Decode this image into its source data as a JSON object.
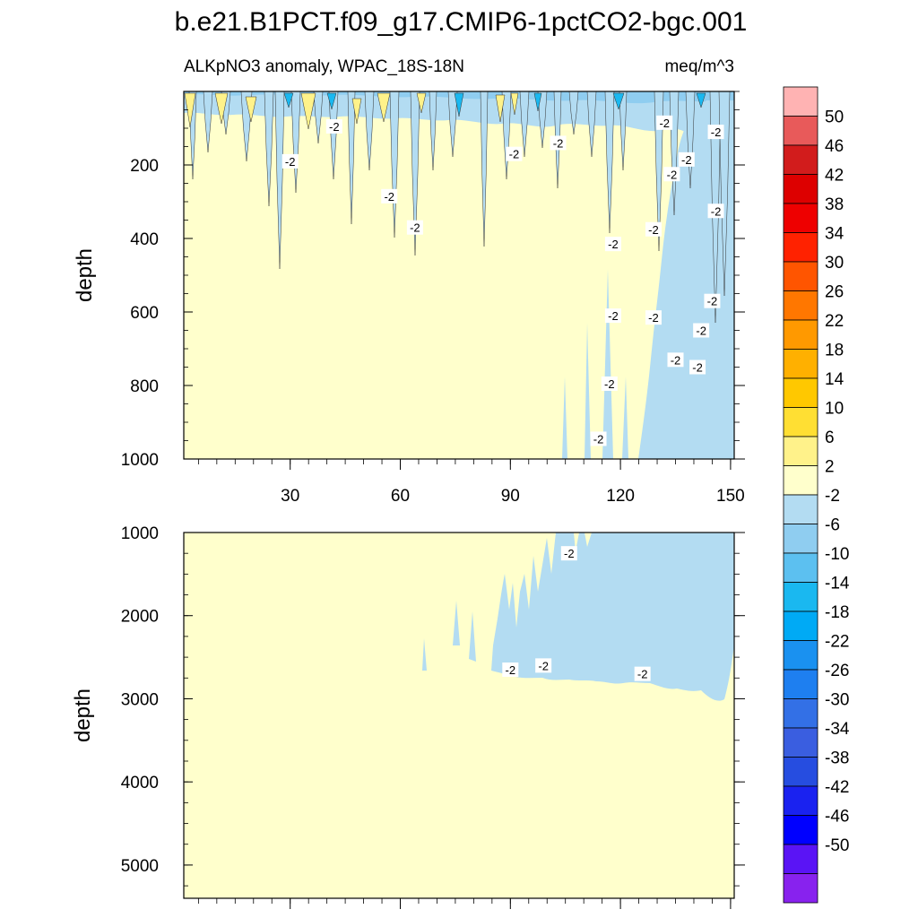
{
  "chart_data": {
    "type": "contour",
    "title": "b.e21.B1PCT.f09_g17.CMIP6-1pctCO2-bgc.001",
    "subtitle_left": "ALKpNO3 anomaly, WPAC_18S-18N",
    "subtitle_right": "meq/m^3",
    "x_ticks": [
      "30",
      "60",
      "90",
      "120",
      "150"
    ],
    "x_tick_values": [
      30,
      60,
      90,
      120,
      150
    ],
    "xlim": [
      1,
      151
    ],
    "contour_label": "-2",
    "panels": [
      {
        "name": "upper",
        "ylabel": "depth",
        "ylim": [
          0,
          1000
        ],
        "y_ticks": [
          "200",
          "400",
          "600",
          "800",
          "1000"
        ],
        "y_tick_values": [
          200,
          400,
          600,
          800,
          1000
        ],
        "labels_at": [
          [
            30,
            190
          ],
          [
            42,
            95
          ],
          [
            57,
            285
          ],
          [
            64,
            370
          ],
          [
            91,
            170
          ],
          [
            103,
            140
          ],
          [
            118,
            415
          ],
          [
            118,
            610
          ],
          [
            117,
            795
          ],
          [
            114,
            945
          ],
          [
            129,
            375
          ],
          [
            129,
            615
          ],
          [
            132,
            85
          ],
          [
            134,
            225
          ],
          [
            135,
            730
          ],
          [
            138,
            185
          ],
          [
            141,
            750
          ],
          [
            142,
            650
          ],
          [
            146,
            110
          ],
          [
            146,
            325
          ],
          [
            145,
            570
          ]
        ]
      },
      {
        "name": "lower",
        "ylabel": "depth",
        "ylim": [
          1000,
          5400
        ],
        "y_ticks": [
          "1000",
          "2000",
          "3000",
          "4000",
          "5000"
        ],
        "y_tick_values": [
          1000,
          2000,
          3000,
          4000,
          5000
        ],
        "labels_at": [
          [
            106,
            1250
          ],
          [
            99,
            2600
          ],
          [
            90,
            2650
          ],
          [
            126,
            2700
          ]
        ]
      }
    ],
    "colorbar": {
      "levels": [
        "50",
        "46",
        "42",
        "38",
        "34",
        "30",
        "26",
        "22",
        "18",
        "14",
        "10",
        "6",
        "2",
        "-2",
        "-6",
        "-10",
        "-14",
        "-18",
        "-22",
        "-26",
        "-30",
        "-34",
        "-38",
        "-42",
        "-46",
        "-50"
      ],
      "colors": [
        "#ffb3b3",
        "#e85a5a",
        "#d21c1c",
        "#dd0000",
        "#ee0000",
        "#ff2200",
        "#ff5500",
        "#ff7700",
        "#ff9900",
        "#ffb000",
        "#ffc800",
        "#ffdf33",
        "#fff28a",
        "#ffffcc",
        "#b3dcf2",
        "#8fcdf0",
        "#5cc0f0",
        "#1ab8f0",
        "#00aaf5",
        "#1a91f0",
        "#1e7ff0",
        "#3370e6",
        "#3a5ee0",
        "#264de0",
        "#1a22f0",
        "#0000ff",
        "#5a14f5",
        "#8822ee"
      ]
    },
    "fill_colors": {
      "background": "#ffffcc",
      "negative": "#b3dcf2",
      "negative_strong": "#8fcdf0",
      "negative_stronger": "#5cc0f0",
      "negative_core": "#1ab8f0",
      "positive": "#fff28a",
      "positive_strong": "#ffdf33"
    }
  }
}
